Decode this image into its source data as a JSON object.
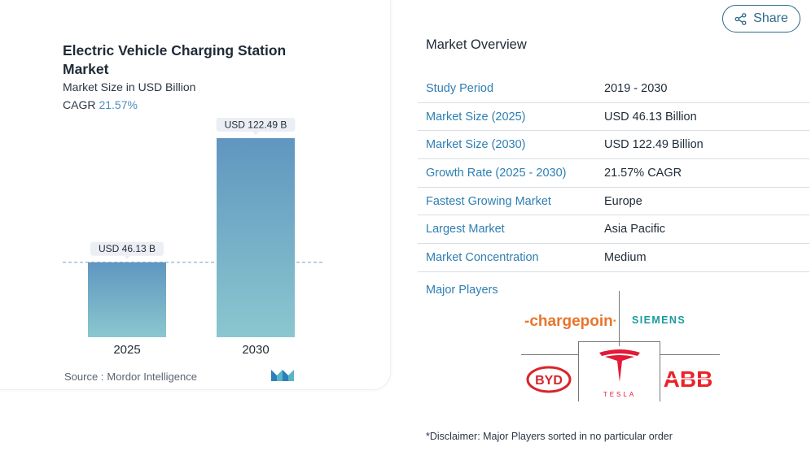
{
  "share": {
    "label": "Share",
    "icon": "share-icon"
  },
  "chart_data": {
    "type": "bar",
    "title": "Electric Vehicle Charging Station Market",
    "subtitle": "Market Size in USD Billion",
    "cagr_label": "CAGR",
    "cagr_value": "21.57%",
    "categories": [
      "2025",
      "2030"
    ],
    "values": [
      46.13,
      122.49
    ],
    "data_labels": [
      "USD 46.13 B",
      "USD 122.49 B"
    ],
    "ylim": [
      0,
      130
    ],
    "bar_colors": {
      "top": "#6096c0",
      "bottom": "#8ac7cf"
    },
    "label_bg": "#ebeef2",
    "reference_line": {
      "value": 46.13,
      "style": "dashed",
      "color": "#8fb4d3"
    },
    "grid": false,
    "source_label": "Source :",
    "source_name": "Mordor Intelligence"
  },
  "overview": {
    "title": "Market Overview",
    "rows": [
      {
        "label": "Study Period",
        "value": "2019 - 2030"
      },
      {
        "label": "Market Size (2025)",
        "value": "USD 46.13 Billion"
      },
      {
        "label": "Market Size (2030)",
        "value": "USD 122.49 Billion"
      },
      {
        "label": "Growth Rate (2025 - 2030)",
        "value": "21.57% CAGR"
      },
      {
        "label": "Fastest Growing Market",
        "value": "Europe"
      },
      {
        "label": "Largest Market",
        "value": "Asia Pacific"
      },
      {
        "label": "Market Concentration",
        "value": "Medium"
      }
    ]
  },
  "major_players": {
    "title": "Major Players",
    "logos": [
      {
        "name": "ChargePoint",
        "text": "-chargepoin+",
        "color": "#e8762d",
        "color2": "#5a6470"
      },
      {
        "name": "Siemens",
        "text": "SIEMENS",
        "color": "#1a9a9e"
      },
      {
        "name": "BYD",
        "text": "BYD",
        "color": "#d7262b"
      },
      {
        "name": "Tesla",
        "text": "TESLA",
        "color": "#e31937"
      },
      {
        "name": "ABB",
        "text": "ABB",
        "color": "#e8242b"
      }
    ]
  },
  "disclaimer": "*Disclaimer: Major Players sorted in no particular order"
}
